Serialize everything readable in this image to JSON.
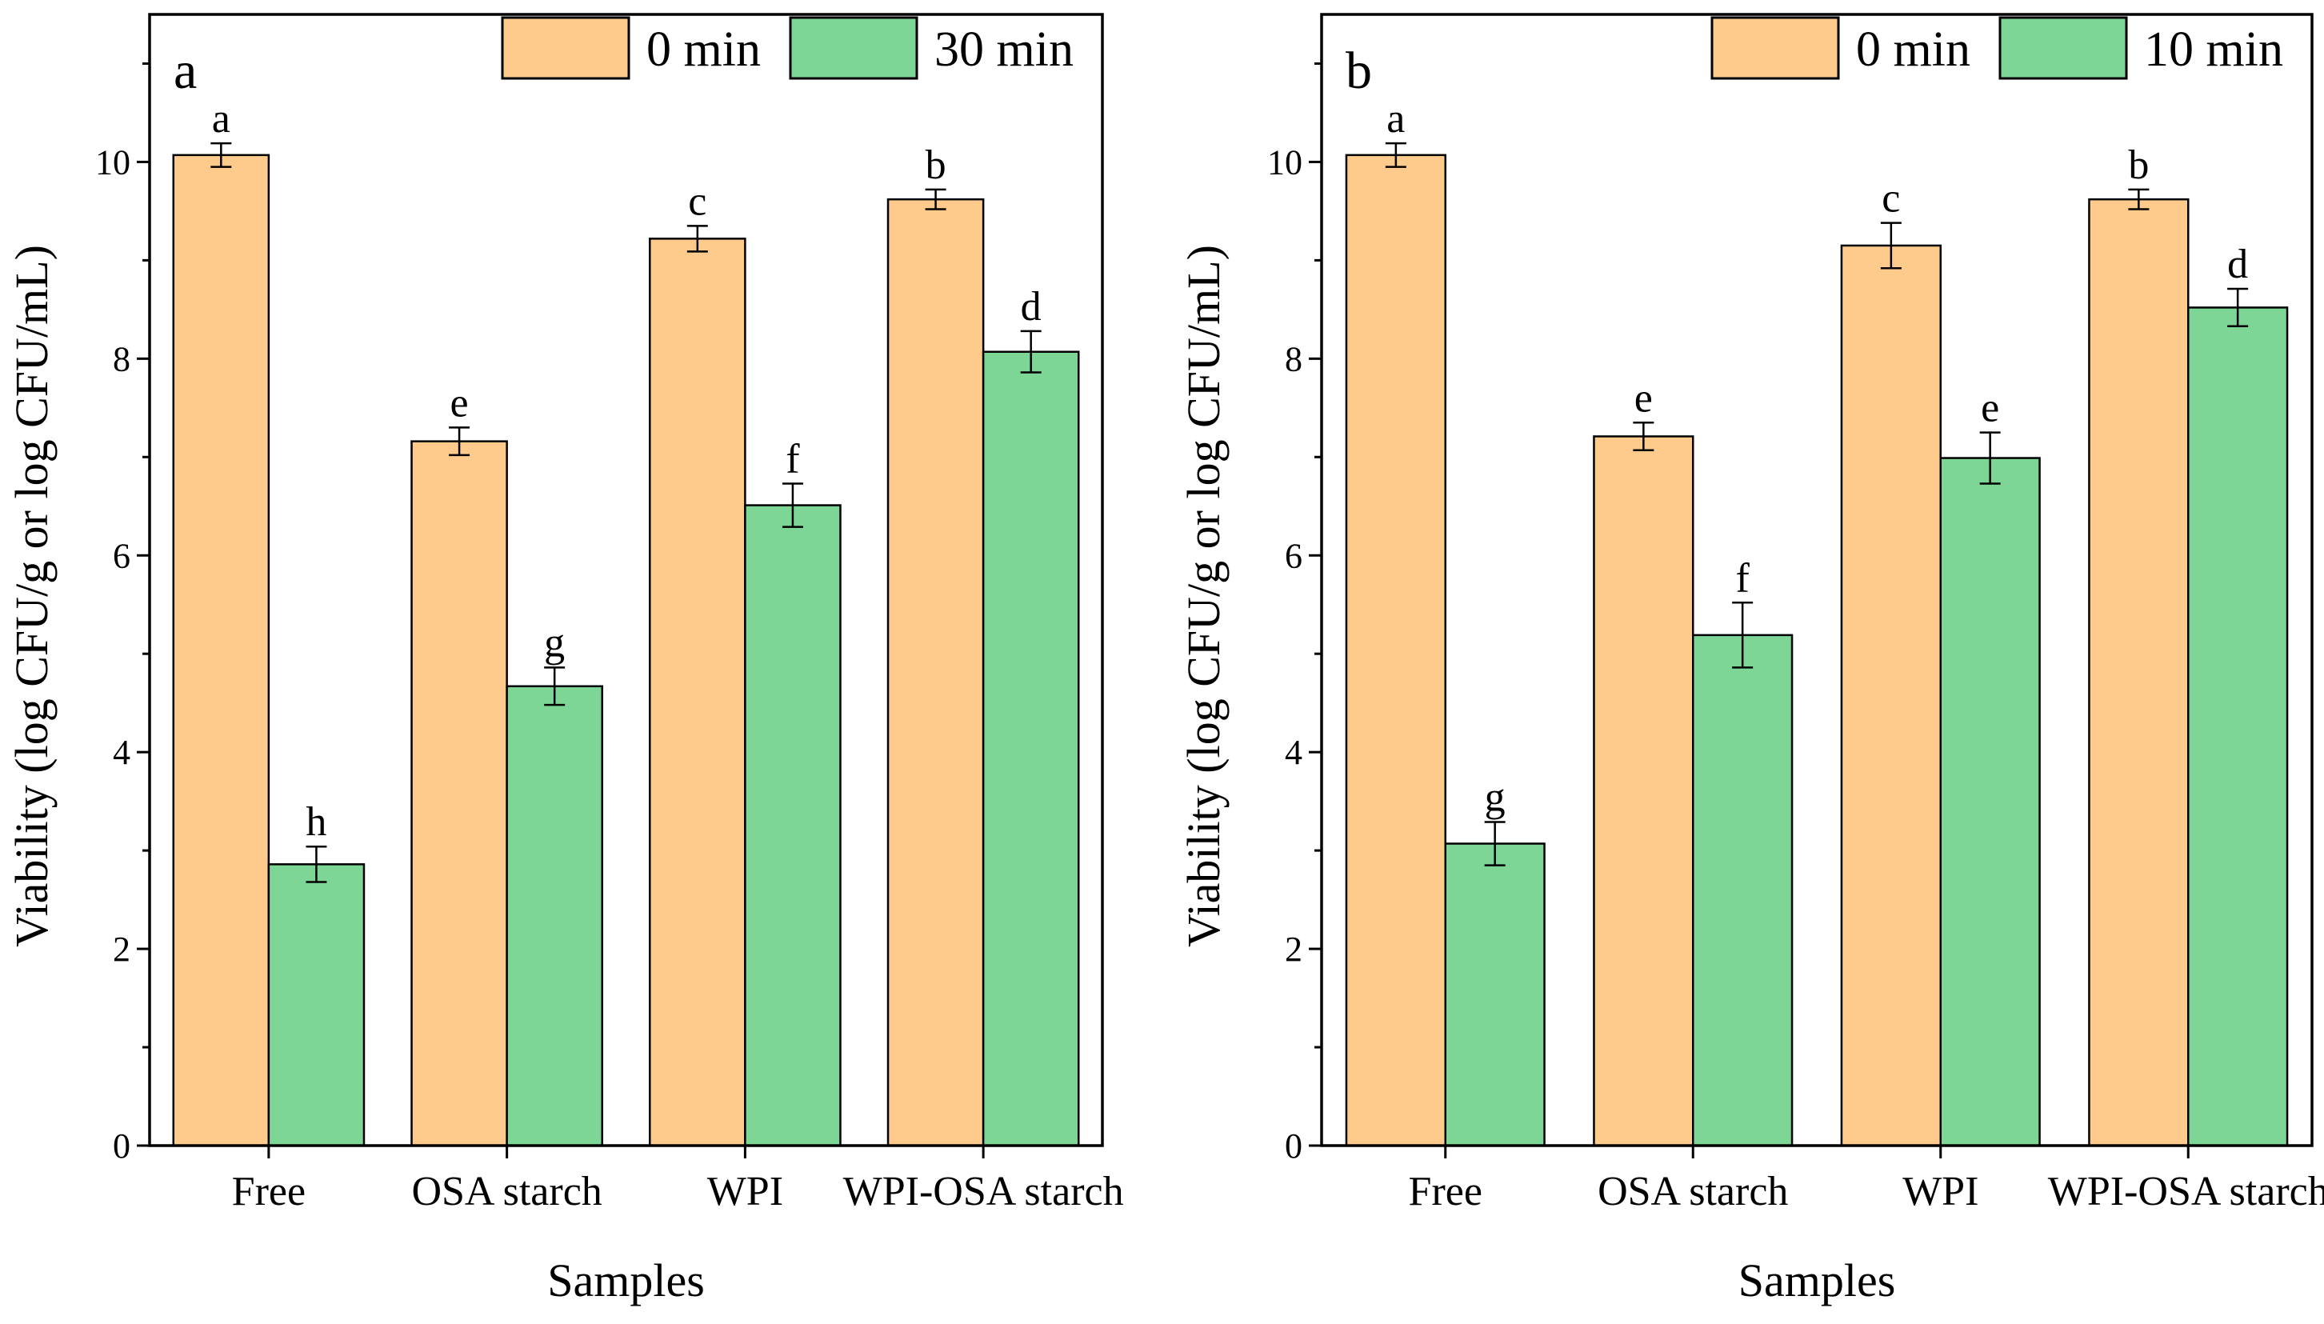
{
  "chart_data": [
    {
      "type": "bar",
      "panel_label": "a",
      "categories": [
        "Free",
        "OSA starch",
        "WPI",
        "WPI-OSA starch"
      ],
      "series": [
        {
          "name": "0 min",
          "color": "#FECB8D",
          "values": [
            10.07,
            7.16,
            9.22,
            9.62
          ],
          "errors": [
            0.12,
            0.14,
            0.13,
            0.1
          ],
          "letters": [
            "a",
            "e",
            "c",
            "b"
          ]
        },
        {
          "name": "30 min",
          "color": "#7DD695",
          "values": [
            2.86,
            4.67,
            6.51,
            8.07
          ],
          "errors": [
            0.18,
            0.19,
            0.22,
            0.21
          ],
          "letters": [
            "h",
            "g",
            "f",
            "d"
          ]
        }
      ],
      "xlabel": "Samples",
      "ylabel": "Viability (log CFU/g or log CFU/mL)",
      "ylim": [
        0,
        11.5
      ],
      "yticks": [
        "0",
        "2",
        "4",
        "6",
        "8",
        "10"
      ],
      "legend": "top-right"
    },
    {
      "type": "bar",
      "panel_label": "b",
      "categories": [
        "Free",
        "OSA starch",
        "WPI",
        "WPI-OSA starch"
      ],
      "series": [
        {
          "name": "0 min",
          "color": "#FECB8D",
          "values": [
            10.07,
            7.21,
            9.15,
            9.62
          ],
          "errors": [
            0.12,
            0.14,
            0.23,
            0.1
          ],
          "letters": [
            "a",
            "e",
            "c",
            "b"
          ]
        },
        {
          "name": "10 min",
          "color": "#7DD695",
          "values": [
            3.07,
            5.19,
            6.99,
            8.52
          ],
          "errors": [
            0.22,
            0.33,
            0.26,
            0.19
          ],
          "letters": [
            "g",
            "f",
            "e",
            "d"
          ]
        }
      ],
      "xlabel": "Samples",
      "ylabel": "Viability (log CFU/g or log CFU/mL)",
      "ylim": [
        0,
        11.5
      ],
      "yticks": [
        "0",
        "2",
        "4",
        "6",
        "8",
        "10"
      ],
      "legend": "top-right"
    }
  ]
}
